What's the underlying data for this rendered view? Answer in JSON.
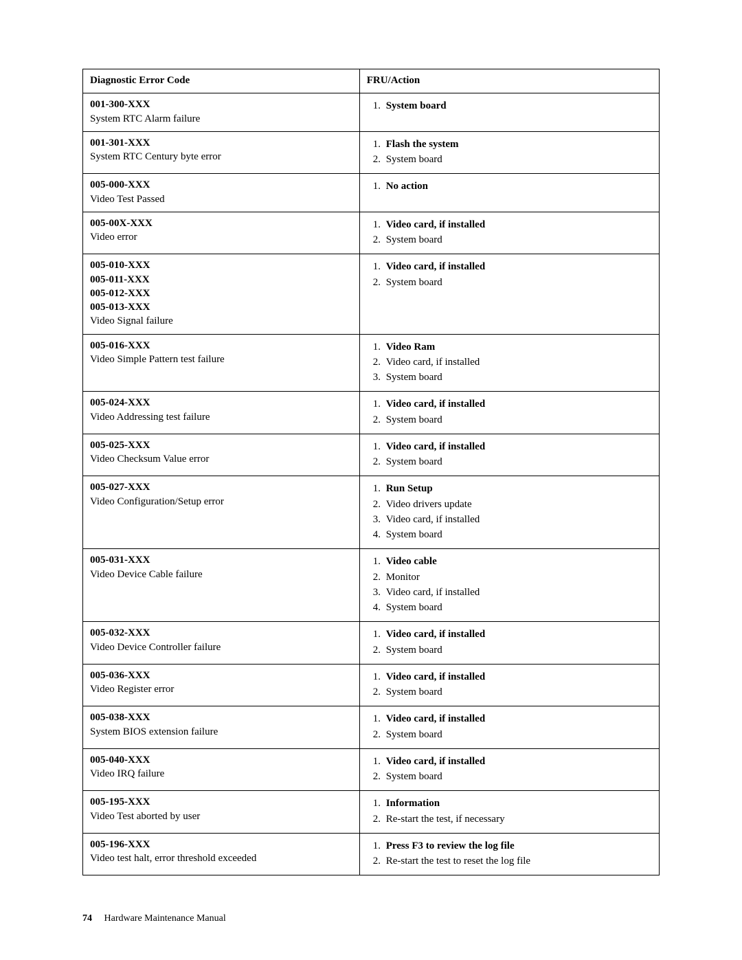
{
  "table": {
    "header": {
      "code": "Diagnostic Error Code",
      "action": "FRU/Action"
    },
    "rows": [
      {
        "codes": [
          "001-300-XXX"
        ],
        "desc": "System RTC Alarm failure",
        "actions": [
          "System board"
        ]
      },
      {
        "codes": [
          "001-301-XXX"
        ],
        "desc": "System RTC Century byte error",
        "actions": [
          "Flash the system",
          "System board"
        ]
      },
      {
        "codes": [
          "005-000-XXX"
        ],
        "desc": "Video Test Passed",
        "actions": [
          "No action"
        ]
      },
      {
        "codes": [
          "005-00X-XXX"
        ],
        "desc": "Video error",
        "actions": [
          "Video card, if installed",
          "System board"
        ]
      },
      {
        "codes": [
          "005-010-XXX",
          "005-011-XXX",
          "005-012-XXX",
          "005-013-XXX"
        ],
        "desc": "Video Signal failure",
        "actions": [
          "Video card, if installed",
          "System board"
        ]
      },
      {
        "codes": [
          "005-016-XXX"
        ],
        "desc": "Video Simple Pattern test failure",
        "actions": [
          "Video Ram",
          "Video card, if installed",
          "System board"
        ]
      },
      {
        "codes": [
          "005-024-XXX"
        ],
        "desc": "Video Addressing test failure",
        "actions": [
          "Video card, if installed",
          "System board"
        ]
      },
      {
        "codes": [
          "005-025-XXX"
        ],
        "desc": "Video Checksum Value error",
        "actions": [
          "Video card, if installed",
          "System board"
        ]
      },
      {
        "codes": [
          "005-027-XXX"
        ],
        "desc": "Video Configuration/Setup error",
        "actions": [
          "Run Setup",
          "Video drivers update",
          "Video card, if installed",
          "System board"
        ]
      },
      {
        "codes": [
          "005-031-XXX"
        ],
        "desc": "Video Device Cable failure",
        "actions": [
          "Video cable",
          "Monitor",
          "Video card, if installed",
          "System board"
        ]
      },
      {
        "codes": [
          "005-032-XXX"
        ],
        "desc": "Video Device Controller failure",
        "actions": [
          "Video card, if installed",
          "System board"
        ]
      },
      {
        "codes": [
          "005-036-XXX"
        ],
        "desc": "Video Register error",
        "actions": [
          "Video card, if installed",
          "System board"
        ]
      },
      {
        "codes": [
          "005-038-XXX"
        ],
        "desc": "System BIOS extension failure",
        "actions": [
          "Video card, if installed",
          "System board"
        ]
      },
      {
        "codes": [
          "005-040-XXX"
        ],
        "desc": "Video IRQ failure",
        "actions": [
          "Video card, if installed",
          "System board"
        ]
      },
      {
        "codes": [
          "005-195-XXX"
        ],
        "desc": "Video Test aborted by user",
        "actions": [
          "Information",
          "Re-start the test, if necessary"
        ]
      },
      {
        "codes": [
          "005-196-XXX"
        ],
        "desc": "Video test halt, error threshold exceeded",
        "actions": [
          "Press F3 to review the log file",
          "Re-start the test to reset the log file"
        ]
      }
    ]
  },
  "footer": {
    "page_number": "74",
    "doc_title": "Hardware Maintenance Manual"
  }
}
